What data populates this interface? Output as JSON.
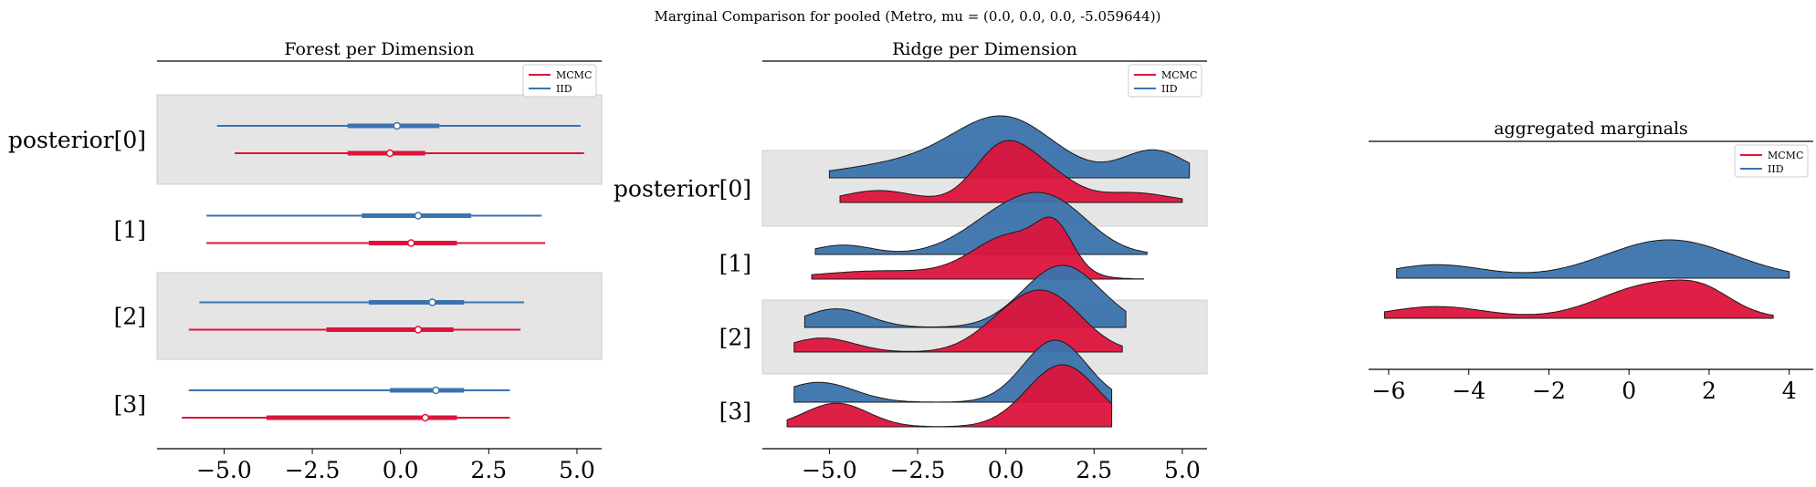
{
  "suptitle": "Marginal Comparison for pooled (Metro, mu = (0.0, 0.0, 0.0, -5.059644))",
  "colors": {
    "mcmc": "#dc143c",
    "iid": "#3b73ad",
    "band": "#e5e5e5"
  },
  "chart_data": [
    {
      "type": "forest",
      "title": "Forest per Dimension",
      "xlim": [
        -6.9,
        5.7
      ],
      "xticks": [
        "−5.0",
        "−2.5",
        "0.0",
        "2.5",
        "5.0"
      ],
      "xtick_values": [
        -5.0,
        -2.5,
        0.0,
        2.5,
        5.0
      ],
      "legend": {
        "placement": "top-right",
        "entries": [
          "MCMC",
          "IID"
        ]
      },
      "rows": [
        {
          "label": "posterior[0]",
          "shaded": true,
          "IID": {
            "hdi94": [
              -5.2,
              5.1
            ],
            "hdi50": [
              -1.5,
              1.1
            ],
            "center": -0.1
          },
          "MCMC": {
            "hdi94": [
              -4.7,
              5.2
            ],
            "hdi50": [
              -1.5,
              0.7
            ],
            "center": -0.3
          }
        },
        {
          "label": "[1]",
          "shaded": false,
          "IID": {
            "hdi94": [
              -5.5,
              4.0
            ],
            "hdi50": [
              -1.1,
              2.0
            ],
            "center": 0.5
          },
          "MCMC": {
            "hdi94": [
              -5.5,
              4.1
            ],
            "hdi50": [
              -0.9,
              1.6
            ],
            "center": 0.3
          }
        },
        {
          "label": "[2]",
          "shaded": true,
          "IID": {
            "hdi94": [
              -5.7,
              3.5
            ],
            "hdi50": [
              -0.9,
              1.8
            ],
            "center": 0.9
          },
          "MCMC": {
            "hdi94": [
              -6.0,
              3.4
            ],
            "hdi50": [
              -2.1,
              1.5
            ],
            "center": 0.5
          }
        },
        {
          "label": "[3]",
          "shaded": false,
          "IID": {
            "hdi94": [
              -6.0,
              3.1
            ],
            "hdi50": [
              -0.3,
              1.8
            ],
            "center": 1.0
          },
          "MCMC": {
            "hdi94": [
              -6.2,
              3.1
            ],
            "hdi50": [
              -3.8,
              1.6
            ],
            "center": 0.7
          }
        }
      ]
    },
    {
      "type": "ridge",
      "title": "Ridge per Dimension",
      "xlim": [
        -6.9,
        5.7
      ],
      "xticks": [
        "−5.0",
        "−2.5",
        "0.0",
        "2.5",
        "5.0"
      ],
      "xtick_values": [
        -5.0,
        -2.5,
        0.0,
        2.5,
        5.0
      ],
      "legend": {
        "placement": "top-right",
        "entries": [
          "MCMC",
          "IID"
        ]
      },
      "rows": [
        {
          "label": "posterior[0]",
          "shaded": true,
          "IID": {
            "range": [
              -5.0,
              5.2
            ],
            "peaks": [
              [
                0.0,
                1.4,
                1.0
              ],
              [
                -2.5,
                2.0,
                0.28
              ],
              [
                4.2,
                0.9,
                0.5
              ]
            ]
          },
          "MCMC": {
            "range": [
              -4.7,
              5.0
            ],
            "peaks": [
              [
                -0.1,
                0.8,
                1.0
              ],
              [
                1.2,
                0.8,
                0.45
              ],
              [
                -3.6,
                1.0,
                0.22
              ],
              [
                3.6,
                1.0,
                0.18
              ]
            ]
          }
        },
        {
          "label": "[1]",
          "shaded": false,
          "IID": {
            "range": [
              -5.4,
              4.0
            ],
            "peaks": [
              [
                0.3,
                1.3,
                1.0
              ],
              [
                1.6,
                1.0,
                0.55
              ],
              [
                -4.6,
                0.8,
                0.2
              ]
            ]
          },
          "MCMC": {
            "range": [
              -5.5,
              3.9
            ],
            "peaks": [
              [
                0.2,
                1.1,
                0.85
              ],
              [
                1.4,
                0.5,
                0.7
              ],
              [
                -3.5,
                1.8,
                0.16
              ]
            ]
          }
        },
        {
          "label": "[2]",
          "shaded": false,
          "shaded_override": true,
          "IID": {
            "range": [
              -5.7,
              3.4
            ],
            "peaks": [
              [
                1.6,
                1.1,
                1.0
              ],
              [
                -4.8,
                0.9,
                0.3
              ]
            ]
          },
          "MCMC": {
            "range": [
              -6.0,
              3.3
            ],
            "peaks": [
              [
                1.2,
                1.0,
                0.85
              ],
              [
                -0.1,
                0.9,
                0.3
              ],
              [
                -5.2,
                0.9,
                0.22
              ]
            ]
          }
        },
        {
          "label": "[3]",
          "shaded": false,
          "IID": {
            "range": [
              -6.0,
              3.0
            ],
            "peaks": [
              [
                1.4,
                0.9,
                1.0
              ],
              [
                -5.3,
                1.0,
                0.32
              ]
            ]
          },
          "MCMC": {
            "range": [
              -6.2,
              3.0
            ],
            "peaks": [
              [
                1.6,
                1.0,
                1.0
              ],
              [
                -4.8,
                0.9,
                0.38
              ]
            ]
          }
        }
      ]
    },
    {
      "type": "ridge",
      "title": "aggregated marginals",
      "xlim": [
        -6.5,
        4.6
      ],
      "xticks": [
        "−6",
        "−4",
        "−2",
        "0",
        "2",
        "4"
      ],
      "xtick_values": [
        -6,
        -4,
        -2,
        0,
        2,
        4
      ],
      "legend": {
        "placement": "top-right",
        "entries": [
          "MCMC",
          "IID"
        ]
      },
      "rows": [
        {
          "label": "",
          "IID": {
            "range": [
              -5.8,
              4.0
            ],
            "peaks": [
              [
                1.0,
                1.6,
                1.0
              ],
              [
                -4.8,
                1.2,
                0.35
              ]
            ]
          },
          "MCMC": {
            "range": [
              -6.1,
              3.6
            ],
            "peaks": [
              [
                0.6,
                1.3,
                1.0
              ],
              [
                1.9,
                0.7,
                0.4
              ],
              [
                -4.8,
                1.2,
                0.35
              ]
            ]
          }
        }
      ]
    }
  ]
}
